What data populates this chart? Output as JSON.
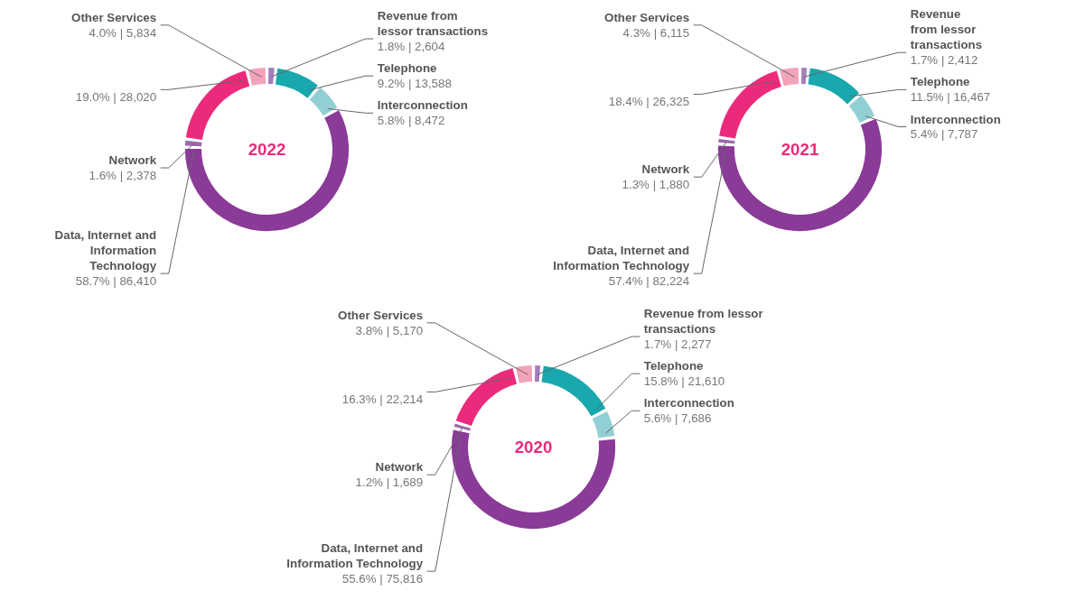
{
  "chart_data": [
    {
      "type": "donut",
      "title": "2022",
      "categories": [
        "Revenue from\nlessor transactions",
        "Telephone",
        "Interconnection",
        "Data, Internet and\nInformation\nTechnology",
        "Network",
        null,
        "Other Services"
      ],
      "values": [
        2604,
        13588,
        8472,
        86410,
        2378,
        28020,
        5834
      ],
      "colors": [
        "#a57fbb",
        "#18a8ae",
        "#92cfd4",
        "#8a3a97",
        "#9c6aaa",
        "#ec2a7b",
        "#f2a3ba"
      ],
      "value_labels": [
        "1.8% | 2,604",
        "9.2% | 13,588",
        "5.8% | 8,472",
        "58.7% | 86,410",
        "1.6% | 2,378",
        "19.0% | 28,020",
        "4.0% | 5,834"
      ]
    },
    {
      "type": "donut",
      "title": "2021",
      "categories": [
        "Revenue\nfrom lessor\ntransactions",
        "Telephone",
        "Interconnection",
        "Data, Internet and\nInformation Technology",
        "Network",
        null,
        "Other Services"
      ],
      "values": [
        2412,
        16467,
        7787,
        82224,
        1880,
        26325,
        6115
      ],
      "colors": [
        "#a57fbb",
        "#18a8ae",
        "#92cfd4",
        "#8a3a97",
        "#9c6aaa",
        "#ec2a7b",
        "#f2a3ba"
      ],
      "value_labels": [
        "1.7% | 2,412",
        "11.5% | 16,467",
        "5.4% | 7,787",
        "57.4% | 82,224",
        "1.3% | 1,880",
        "18.4% | 26,325",
        "4.3% | 6,115"
      ]
    },
    {
      "type": "donut",
      "title": "2020",
      "categories": [
        "Revenue from lessor\ntransactions",
        "Telephone",
        "Interconnection",
        "Data, Internet and\nInformation Technology",
        "Network",
        null,
        "Other Services"
      ],
      "values": [
        2277,
        21610,
        7686,
        75816,
        1689,
        22214,
        5170
      ],
      "colors": [
        "#a57fbb",
        "#18a8ae",
        "#92cfd4",
        "#8a3a97",
        "#9c6aaa",
        "#ec2a7b",
        "#f2a3ba"
      ],
      "value_labels": [
        "1.7% | 2,277",
        "15.8% | 21,610",
        "5.6% | 7,686",
        "55.6% | 75,816",
        "1.2% | 1,689",
        "16.3% | 22,214",
        "3.8% | 5,170"
      ]
    }
  ]
}
